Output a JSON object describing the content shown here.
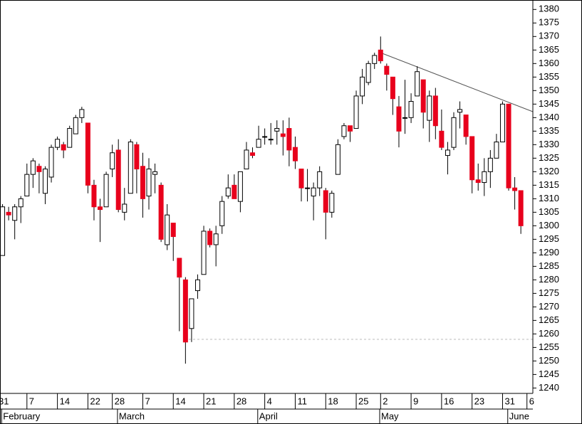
{
  "chart_data": {
    "type": "candlestick",
    "categories": [
      "31",
      null,
      null,
      null,
      null,
      "7",
      null,
      null,
      null,
      null,
      "14",
      null,
      null,
      null,
      null,
      "22",
      null,
      null,
      null,
      "28",
      null,
      null,
      null,
      null,
      "7",
      null,
      null,
      null,
      null,
      "14",
      null,
      null,
      null,
      null,
      "21",
      null,
      null,
      null,
      null,
      "28",
      null,
      null,
      null,
      null,
      "4",
      null,
      null,
      null,
      null,
      "11",
      null,
      null,
      null,
      null,
      "18",
      null,
      null,
      null,
      null,
      "25",
      null,
      null,
      null,
      "2",
      null,
      null,
      null,
      null,
      "9",
      null,
      null,
      null,
      null,
      "16",
      null,
      null,
      null,
      null,
      "23",
      null,
      null,
      null,
      null,
      "31",
      null,
      null,
      null,
      "6"
    ],
    "month_labels": [
      null,
      "February",
      null,
      null,
      null,
      null,
      null,
      null,
      null,
      null,
      null,
      null,
      null,
      null,
      null,
      null,
      null,
      null,
      null,
      null,
      "March",
      null,
      null,
      null,
      null,
      null,
      null,
      null,
      null,
      null,
      null,
      null,
      null,
      null,
      null,
      null,
      null,
      null,
      null,
      null,
      null,
      null,
      null,
      "April",
      null,
      null,
      null,
      null,
      null,
      null,
      null,
      null,
      null,
      null,
      null,
      null,
      null,
      null,
      null,
      null,
      null,
      null,
      null,
      "May",
      null,
      null,
      null,
      null,
      null,
      null,
      null,
      null,
      null,
      null,
      null,
      null,
      null,
      null,
      null,
      null,
      null,
      null,
      null,
      null,
      "June",
      null,
      null,
      null
    ],
    "open": [
      1276,
      1289,
      1305,
      1302,
      1307,
      1311,
      1319,
      1322,
      1312,
      1318,
      1329,
      1330,
      1329,
      1334,
      1340,
      1338,
      1315,
      1307,
      1307,
      1321,
      1328,
      1305,
      1312,
      1330,
      1322,
      1311,
      1319,
      1315,
      1293,
      1301,
      1288,
      1280,
      1262,
      1276,
      1282,
      1298,
      1293,
      1300,
      1311,
      1315,
      1309,
      1321,
      1327,
      1329,
      1333,
      1332,
      1335,
      1334,
      1336,
      1329,
      1321,
      1314,
      1311,
      1314,
      1313,
      1305,
      1319,
      1333,
      1337,
      1336,
      1348,
      1353,
      1360,
      1365,
      1359,
      1355,
      1344,
      1340,
      1340,
      1348,
      1354,
      1339,
      1348,
      1335,
      1326,
      1329,
      1342,
      1341,
      1333,
      1317,
      1316,
      1320,
      1325,
      1331,
      1345,
      1314,
      1313,
      null
    ],
    "high": [
      1287,
      1308,
      1307,
      1308,
      1311,
      1323,
      1325,
      1323,
      1322,
      1330,
      1333,
      1331,
      1337,
      1341,
      1344,
      1338,
      1317,
      1310,
      1320,
      1330,
      1332,
      1314,
      1332,
      1331,
      1327,
      1325,
      1323,
      1316,
      1308,
      1301,
      1288,
      1281,
      1272,
      1282,
      1300,
      1299,
      1300,
      1311,
      1319,
      1319,
      1320,
      1331,
      1329,
      1337,
      1336,
      1338,
      1339,
      1339,
      1340,
      1333,
      1321,
      1321,
      1316,
      1322,
      1314,
      1313,
      1332,
      1338,
      1337,
      1350,
      1358,
      1361,
      1364,
      1370,
      1360,
      1355,
      1348,
      1354,
      1349,
      1359,
      1354,
      1350,
      1351,
      1343,
      1331,
      1342,
      1346,
      1341,
      1333,
      1323,
      1325,
      1328,
      1334,
      1346,
      1345,
      1318,
      1313,
      null
    ],
    "low": [
      1274,
      1289,
      1302,
      1295,
      1301,
      1311,
      1314,
      1312,
      1308,
      1316,
      1328,
      1325,
      1329,
      1334,
      1338,
      1312,
      1302,
      1294,
      1307,
      1318,
      1305,
      1302,
      1312,
      1312,
      1303,
      1306,
      1312,
      1294,
      1291,
      1287,
      1261,
      1249,
      1257,
      1273,
      1282,
      1292,
      1285,
      1297,
      1310,
      1310,
      1305,
      1321,
      1325,
      1329,
      1330,
      1330,
      1330,
      1326,
      1322,
      1321,
      1309,
      1309,
      1302,
      1311,
      1295,
      1303,
      1319,
      1332,
      1331,
      1336,
      1345,
      1352,
      1358,
      1360,
      1350,
      1341,
      1329,
      1334,
      1338,
      1348,
      1336,
      1331,
      1332,
      1328,
      1319,
      1328,
      1336,
      1330,
      1312,
      1313,
      1311,
      1314,
      1325,
      1331,
      1313,
      1306,
      1297,
      null
    ],
    "close": [
      1286,
      1307,
      1304,
      1307,
      1310,
      1319,
      1324,
      1320,
      1321,
      1329,
      1332,
      1328,
      1336,
      1340,
      1343,
      1315,
      1307,
      1306,
      1319,
      1327,
      1306,
      1308,
      1331,
      1321,
      1310,
      1321,
      1320,
      1295,
      1304,
      1296,
      1281,
      1257,
      1273,
      1280,
      1298,
      1293,
      1297,
      1309,
      1314,
      1310,
      1320,
      1328,
      1326,
      1332,
      1333,
      1332,
      1336,
      1333,
      1328,
      1324,
      1314,
      1314,
      1314,
      1320,
      1305,
      1312,
      1330,
      1337,
      1335,
      1348,
      1355,
      1360,
      1363,
      1361,
      1356,
      1347,
      1335,
      1340,
      1346,
      1357,
      1342,
      1348,
      1337,
      1329,
      1328,
      1340,
      1343,
      1333,
      1317,
      1316,
      1320,
      1325,
      1331,
      1345,
      1314,
      1313,
      1300,
      null
    ],
    "up_color": "#ffffff",
    "down_color": "#e8001c",
    "ylim": [
      1238,
      1383.5
    ],
    "yticks": [
      1240,
      1245,
      1250,
      1255,
      1260,
      1265,
      1270,
      1275,
      1280,
      1285,
      1290,
      1295,
      1300,
      1305,
      1310,
      1315,
      1320,
      1325,
      1330,
      1335,
      1340,
      1345,
      1350,
      1355,
      1360,
      1365,
      1370,
      1375,
      1380
    ]
  }
}
